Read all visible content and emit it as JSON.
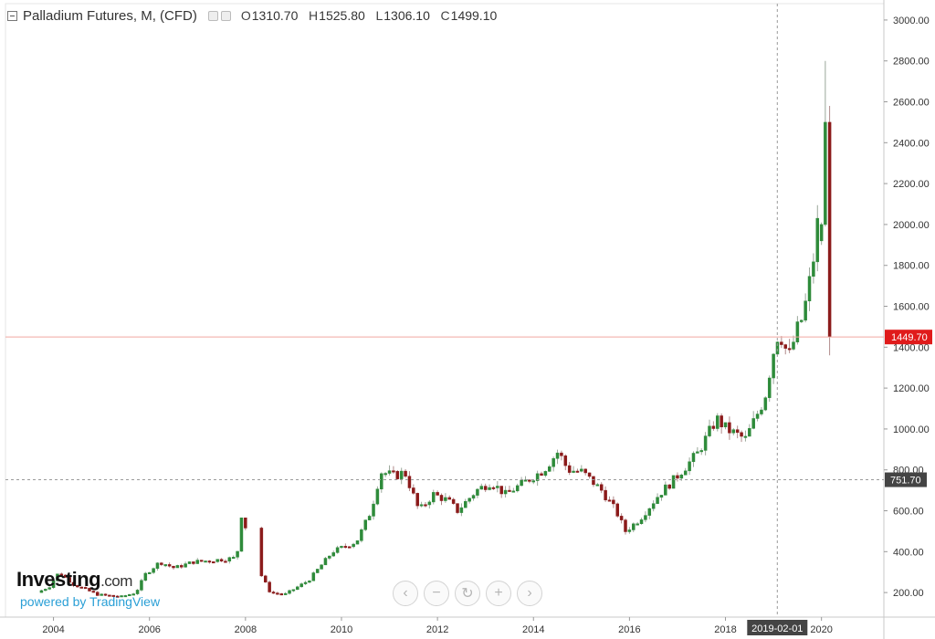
{
  "header": {
    "title": "Palladium Futures, M, (CFD)",
    "open_label": "O",
    "open": "1310.70",
    "high_label": "H",
    "high": "1525.80",
    "low_label": "L",
    "low": "1306.10",
    "close_label": "C",
    "close": "1499.10"
  },
  "branding": {
    "logo_main": "Investing",
    "logo_suffix": ".com",
    "powered_by": "powered by TradingView"
  },
  "navigation": {
    "buttons": [
      {
        "name": "scroll-left-button",
        "icon": "chevron-left-icon",
        "glyph": "‹"
      },
      {
        "name": "zoom-out-button",
        "icon": "minus-icon",
        "glyph": "−"
      },
      {
        "name": "reset-button",
        "icon": "reset-icon",
        "glyph": "↻"
      },
      {
        "name": "zoom-in-button",
        "icon": "plus-icon",
        "glyph": "+"
      },
      {
        "name": "scroll-right-button",
        "icon": "chevron-right-icon",
        "glyph": "›"
      }
    ]
  },
  "colors": {
    "up": "#2e8b3a",
    "down": "#8b1a1a",
    "price_line": "#f0a8a0",
    "price_tag": "#e01b1b",
    "crosshair_tag": "#444444"
  },
  "chart_data": {
    "type": "candlestick",
    "title": "Palladium Futures, M, (CFD)",
    "interval": "monthly",
    "xlim": [
      2003.0,
      2021.3
    ],
    "ylim": [
      80,
      3080
    ],
    "y_ticks": [
      "200.00",
      "400.00",
      "600.00",
      "800.00",
      "1000.00",
      "1200.00",
      "1400.00",
      "1600.00",
      "1800.00",
      "2000.00",
      "2200.00",
      "2400.00",
      "2600.00",
      "2800.00",
      "3000.00"
    ],
    "x_ticks": [
      "2004",
      "2006",
      "2008",
      "2010",
      "2012",
      "2014",
      "2016",
      "2018",
      "2020"
    ],
    "last_price": {
      "value": 1449.7,
      "label": "1449.70"
    },
    "crosshair": {
      "y": 751.7,
      "y_label": "751.70",
      "x_date": "2019-02-01",
      "x_label": "2019-02-01"
    },
    "gap_2008": [
      2008.0,
      2008.4
    ],
    "anchors": [
      [
        2003.75,
        200
      ],
      [
        2004.0,
        230
      ],
      [
        2004.2,
        300
      ],
      [
        2004.5,
        240
      ],
      [
        2005.0,
        190
      ],
      [
        2005.5,
        180
      ],
      [
        2005.8,
        200
      ],
      [
        2006.0,
        290
      ],
      [
        2006.3,
        350
      ],
      [
        2006.6,
        320
      ],
      [
        2007.0,
        350
      ],
      [
        2007.5,
        360
      ],
      [
        2007.9,
        370
      ],
      [
        2008.0,
        580
      ],
      [
        2008.2,
        440
      ],
      [
        2008.4,
        290
      ],
      [
        2008.6,
        200
      ],
      [
        2008.9,
        190
      ],
      [
        2009.4,
        260
      ],
      [
        2009.9,
        400
      ],
      [
        2010.4,
        450
      ],
      [
        2010.7,
        600
      ],
      [
        2010.9,
        790
      ],
      [
        2011.2,
        770
      ],
      [
        2011.4,
        790
      ],
      [
        2011.7,
        600
      ],
      [
        2012.0,
        680
      ],
      [
        2012.3,
        650
      ],
      [
        2012.5,
        600
      ],
      [
        2012.9,
        700
      ],
      [
        2013.2,
        740
      ],
      [
        2013.5,
        680
      ],
      [
        2013.9,
        740
      ],
      [
        2014.3,
        800
      ],
      [
        2014.6,
        890
      ],
      [
        2014.8,
        800
      ],
      [
        2015.1,
        790
      ],
      [
        2015.5,
        700
      ],
      [
        2015.8,
        600
      ],
      [
        2016.0,
        500
      ],
      [
        2016.3,
        560
      ],
      [
        2016.7,
        680
      ],
      [
        2017.0,
        750
      ],
      [
        2017.5,
        880
      ],
      [
        2017.9,
        1050
      ],
      [
        2018.1,
        1000
      ],
      [
        2018.5,
        950
      ],
      [
        2018.9,
        1150
      ],
      [
        2019.1,
        1400
      ],
      [
        2019.2,
        1480
      ],
      [
        2019.4,
        1350
      ],
      [
        2019.6,
        1500
      ],
      [
        2019.7,
        1550
      ],
      [
        2019.9,
        1800
      ],
      [
        2020.0,
        2000
      ],
      [
        2020.08,
        2400
      ],
      [
        2020.12,
        2450
      ]
    ],
    "extra_candles": [
      {
        "x": 2020.0,
        "open": 1920,
        "high": 2010,
        "low": 1900,
        "close": 2000
      },
      {
        "x": 2020.08,
        "open": 2000,
        "high": 2800,
        "low": 1990,
        "close": 2500
      },
      {
        "x": 2020.17,
        "open": 2500,
        "high": 2580,
        "low": 1360,
        "close": 1449.7
      }
    ],
    "seed": 7
  }
}
